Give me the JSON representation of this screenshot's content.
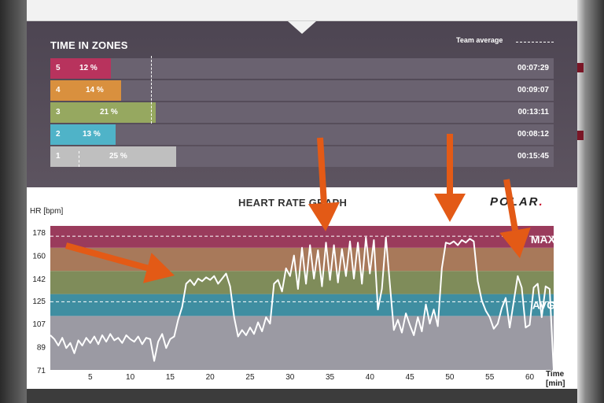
{
  "zones": {
    "title": "TIME IN ZONES",
    "team_average_label": "Team average",
    "rows": [
      {
        "zone": "5",
        "percent": "12 %",
        "time": "00:07:29",
        "share": 0.12,
        "color": "#b8335d"
      },
      {
        "zone": "4",
        "percent": "14 %",
        "time": "00:09:07",
        "share": 0.14,
        "color": "#d9903e"
      },
      {
        "zone": "3",
        "percent": "21 %",
        "time": "00:13:11",
        "share": 0.21,
        "color": "#96a860"
      },
      {
        "zone": "2",
        "percent": "13 %",
        "time": "00:08:12",
        "share": 0.13,
        "color": "#4fb3c8"
      },
      {
        "zone": "1",
        "percent": "25 %",
        "time": "00:15:45",
        "share": 0.25,
        "color": "#bfbfbf"
      }
    ]
  },
  "brand": {
    "logo_text": "POLAR",
    "logo_accent": "."
  },
  "chart_data": {
    "type": "line",
    "title": "HEART RATE GRAPH",
    "ylabel": "HR [bpm]",
    "xlabel": "Time\n[min]",
    "y_ticks": [
      71,
      89,
      107,
      125,
      142,
      160,
      178
    ],
    "x_ticks": [
      5,
      10,
      15,
      20,
      25,
      30,
      35,
      40,
      45,
      50,
      55,
      60
    ],
    "xlim": [
      0,
      63
    ],
    "ylim": [
      71,
      183
    ],
    "grid": false,
    "zone_bands": [
      {
        "zone": "1",
        "from": 71,
        "to": 113,
        "color": "#9b9aa3"
      },
      {
        "zone": "2",
        "from": 113,
        "to": 130,
        "color": "#3f8ea1"
      },
      {
        "zone": "3",
        "from": 130,
        "to": 148,
        "color": "#7f8c5a"
      },
      {
        "zone": "4",
        "from": 148,
        "to": 166,
        "color": "#a8795a"
      },
      {
        "zone": "5",
        "from": 166,
        "to": 183,
        "color": "#9a3b5c"
      }
    ],
    "reference_lines": [
      {
        "label": "MAX",
        "value": 175
      },
      {
        "label": "AVG",
        "value": 124
      }
    ],
    "series": [
      {
        "x": [
          0,
          0.5,
          1,
          1.5,
          2,
          2.5,
          3,
          3.5,
          4,
          4.5,
          5,
          5.5,
          6,
          6.5,
          7,
          7.5,
          8,
          8.5,
          9,
          9.5,
          10,
          10.5,
          11,
          11.5,
          12,
          12.5,
          13,
          13.5,
          14,
          14.5,
          15,
          15.5,
          16,
          16.5,
          17,
          17.5,
          18,
          18.5,
          19,
          19.5,
          20,
          20.5,
          21,
          21.5,
          22,
          22.5,
          23,
          23.5,
          24,
          24.5,
          25,
          25.5,
          26,
          26.5,
          27,
          27.5,
          28,
          28.5,
          29,
          29.5,
          30,
          30.5,
          31,
          31.5,
          32,
          32.5,
          33,
          33.5,
          34,
          34.5,
          35,
          35.5,
          36,
          36.5,
          37,
          37.5,
          38,
          38.5,
          39,
          39.5,
          40,
          40.5,
          41,
          41.5,
          42,
          42.5,
          43,
          43.5,
          44,
          44.5,
          45,
          45.5,
          46,
          46.5,
          47,
          47.5,
          48,
          48.5,
          49,
          49.5,
          50,
          50.5,
          51,
          51.5,
          52,
          52.5,
          53,
          53.5,
          54,
          54.5,
          55,
          55.5,
          56,
          56.5,
          57,
          57.5,
          58,
          58.5,
          59,
          59.5,
          60,
          60.5,
          61,
          61.5,
          62,
          62.5,
          63
        ],
        "y": [
          98,
          95,
          90,
          96,
          88,
          92,
          84,
          94,
          90,
          96,
          92,
          97,
          91,
          98,
          93,
          99,
          94,
          96,
          92,
          98,
          95,
          93,
          97,
          91,
          96,
          95,
          78,
          93,
          99,
          88,
          95,
          97,
          110,
          120,
          138,
          141,
          137,
          142,
          140,
          143,
          141,
          144,
          138,
          142,
          146,
          136,
          112,
          97,
          102,
          98,
          104,
          99,
          108,
          101,
          112,
          107,
          138,
          141,
          132,
          150,
          144,
          160,
          134,
          166,
          138,
          168,
          142,
          164,
          136,
          170,
          141,
          168,
          139,
          165,
          144,
          171,
          142,
          170,
          138,
          174,
          146,
          172,
          118,
          134,
          174,
          138,
          102,
          110,
          100,
          115,
          106,
          98,
          112,
          101,
          122,
          107,
          118,
          105,
          150,
          170,
          169,
          171,
          168,
          172,
          170,
          173,
          171,
          140,
          125,
          117,
          112,
          103,
          107,
          119,
          127,
          104,
          124,
          144,
          135,
          104,
          106,
          135,
          138,
          112,
          136,
          134,
          71
        ]
      }
    ]
  }
}
